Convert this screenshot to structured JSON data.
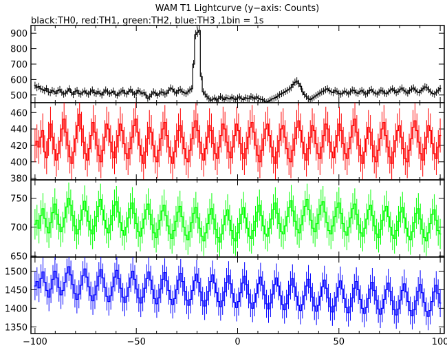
{
  "chart_data": {
    "type": "line",
    "title": "WAM T1 Lightcurve (y−axis: Counts)",
    "subtitle": "black:TH0, red:TH1, green:TH2, blue:TH3 ,1bin = 1s",
    "x_range": [
      -102,
      102
    ],
    "x_ticks": [
      -100,
      -50,
      0,
      50,
      100
    ],
    "x_tick_labels": [
      "−100",
      "−50",
      "0",
      "50",
      "100"
    ],
    "grid": false,
    "panels": [
      {
        "series_name": "TH0",
        "color": "#000000",
        "ylim": [
          450,
          950
        ],
        "yticks": [
          500,
          600,
          700,
          800,
          900
        ],
        "values": [
          562,
          548,
          555,
          540,
          535,
          528,
          541,
          520,
          515,
          530,
          522,
          510,
          528,
          535,
          518,
          505,
          512,
          525,
          540,
          515,
          503,
          522,
          530,
          510,
          505,
          518,
          526,
          512,
          505,
          520,
          532,
          515,
          508,
          522,
          510,
          500,
          518,
          532,
          520,
          508,
          515,
          525,
          505,
          498,
          512,
          520,
          530,
          512,
          506,
          522,
          535,
          518,
          504,
          512,
          528,
          520,
          508,
          515,
          500,
          478,
          488,
          505,
          520,
          512,
          498,
          508,
          520,
          516,
          505,
          512,
          530,
          545,
          538,
          520,
          512,
          528,
          535,
          522,
          515,
          508,
          520,
          532,
          540,
          700,
          890,
          905,
          918,
          620,
          520,
          505,
          488,
          476,
          465,
          472,
          480,
          468,
          475,
          490,
          480,
          470,
          482,
          478,
          474,
          485,
          476,
          470,
          480,
          488,
          476,
          470,
          482,
          478,
          476,
          490,
          482,
          474,
          488,
          478,
          472,
          470,
          460,
          452,
          458,
          466,
          474,
          478,
          484,
          492,
          502,
          508,
          515,
          522,
          530,
          538,
          548,
          568,
          582,
          590,
          574,
          556,
          520,
          502,
          490,
          476,
          470,
          478,
          486,
          495,
          504,
          512,
          520,
          525,
          534,
          540,
          528,
          520,
          515,
          530,
          522,
          510,
          505,
          512,
          525,
          518,
          506,
          520,
          532,
          528,
          515,
          510,
          522,
          530,
          518,
          505,
          512,
          528,
          535,
          520,
          512,
          505,
          518,
          530,
          525,
          512,
          508,
          520,
          532,
          540,
          528,
          515,
          522,
          535,
          545,
          530,
          520,
          512,
          528,
          538,
          545,
          532,
          520,
          515,
          528,
          540,
          552,
          548,
          535,
          520,
          510,
          505,
          518,
          530,
          542
        ]
      },
      {
        "series_name": "TH1",
        "color": "#ff0000",
        "ylim": [
          378,
          472
        ],
        "yticks": [
          380,
          400,
          420,
          440,
          460
        ],
        "values": [
          420,
          425,
          418,
          430,
          438,
          412,
          405,
          428,
          446,
          430,
          415,
          402,
          410,
          425,
          440,
          452,
          436,
          420,
          406,
          398,
          412,
          428,
          444,
          458,
          440,
          424,
          410,
          402,
          416,
          432,
          448,
          436,
          420,
          408,
          400,
          414,
          430,
          446,
          440,
          424,
          412,
          405,
          418,
          432,
          446,
          438,
          422,
          410,
          404,
          416,
          430,
          444,
          452,
          436,
          420,
          408,
          398,
          412,
          428,
          442,
          436,
          420,
          406,
          400,
          414,
          428,
          440,
          448,
          432,
          418,
          406,
          398,
          412,
          426,
          438,
          444,
          430,
          416,
          404,
          400,
          414,
          428,
          442,
          450,
          438,
          424,
          410,
          402,
          416,
          430,
          444,
          438,
          422,
          410,
          404,
          418,
          432,
          446,
          440,
          424,
          412,
          405,
          418,
          432,
          446,
          438,
          422,
          410,
          404,
          416,
          430,
          442,
          448,
          436,
          420,
          408,
          400,
          414,
          428,
          440,
          446,
          432,
          418,
          406,
          398,
          412,
          426,
          440,
          444,
          430,
          416,
          404,
          400,
          414,
          428,
          442,
          450,
          438,
          424,
          410,
          402,
          416,
          430,
          444,
          438,
          422,
          410,
          404,
          418,
          432,
          446,
          440,
          424,
          412,
          405,
          418,
          432,
          446,
          438,
          422,
          410,
          404,
          416,
          430,
          444,
          452,
          436,
          420,
          408,
          398,
          412,
          428,
          442,
          436,
          420,
          406,
          400,
          414,
          428,
          440,
          448,
          432,
          418,
          406,
          398,
          412,
          426,
          438,
          444,
          430,
          416,
          404,
          400,
          414,
          428,
          442,
          450,
          438,
          424,
          410,
          402,
          416,
          430,
          444,
          438,
          422,
          410,
          404,
          418,
          432
        ]
      },
      {
        "series_name": "TH2",
        "color": "#00ff00",
        "ylim": [
          648,
          782
        ],
        "yticks": [
          650,
          700,
          750
        ],
        "values": [
          705,
          712,
          698,
          720,
          732,
          715,
          700,
          690,
          708,
          725,
          740,
          722,
          705,
          692,
          700,
          716,
          735,
          750,
          738,
          720,
          702,
          688,
          696,
          712,
          730,
          745,
          728,
          710,
          695,
          688,
          702,
          718,
          736,
          748,
          730,
          712,
          698,
          690,
          704,
          720,
          738,
          744,
          726,
          708,
          694,
          686,
          700,
          716,
          732,
          742,
          724,
          706,
          692,
          684,
          698,
          714,
          730,
          740,
          722,
          704,
          690,
          682,
          696,
          712,
          728,
          738,
          720,
          702,
          688,
          680,
          694,
          710,
          726,
          736,
          718,
          700,
          686,
          678,
          692,
          708,
          724,
          734,
          716,
          698,
          684,
          676,
          690,
          706,
          722,
          732,
          714,
          696,
          682,
          674,
          688,
          704,
          720,
          730,
          712,
          694,
          680,
          676,
          690,
          706,
          722,
          734,
          716,
          698,
          684,
          680,
          694,
          710,
          726,
          738,
          720,
          702,
          688,
          684,
          698,
          714,
          730,
          742,
          724,
          706,
          692,
          688,
          702,
          718,
          734,
          746,
          728,
          710,
          696,
          690,
          704,
          720,
          736,
          748,
          730,
          712,
          698,
          692,
          706,
          722,
          738,
          744,
          726,
          708,
          694,
          688,
          702,
          718,
          734,
          742,
          724,
          706,
          692,
          686,
          700,
          716,
          732,
          740,
          722,
          704,
          690,
          684,
          698,
          714,
          730,
          738,
          720,
          702,
          688,
          682,
          696,
          712,
          728,
          736,
          718,
          700,
          686,
          680,
          694,
          710,
          726,
          734,
          716,
          698,
          684,
          678,
          692,
          708,
          724,
          732,
          714,
          696,
          682,
          676,
          690,
          706,
          722,
          730,
          712,
          694,
          688
        ]
      },
      {
        "series_name": "TH3",
        "color": "#0000ff",
        "ylim": [
          1332,
          1538
        ],
        "yticks": [
          1350,
          1400,
          1450,
          1500
        ],
        "values": [
          1460,
          1472,
          1455,
          1480,
          1498,
          1470,
          1448,
          1430,
          1452,
          1478,
          1500,
          1482,
          1456,
          1436,
          1448,
          1470,
          1495,
          1512,
          1490,
          1464,
          1440,
          1424,
          1438,
          1462,
          1488,
          1506,
          1484,
          1458,
          1434,
          1420,
          1436,
          1460,
          1486,
          1504,
          1482,
          1456,
          1432,
          1418,
          1434,
          1458,
          1484,
          1502,
          1480,
          1454,
          1430,
          1416,
          1432,
          1456,
          1482,
          1500,
          1478,
          1452,
          1428,
          1414,
          1430,
          1454,
          1480,
          1498,
          1476,
          1450,
          1426,
          1412,
          1428,
          1452,
          1478,
          1496,
          1474,
          1448,
          1424,
          1410,
          1426,
          1450,
          1476,
          1494,
          1472,
          1446,
          1422,
          1408,
          1424,
          1448,
          1474,
          1492,
          1470,
          1444,
          1420,
          1406,
          1422,
          1446,
          1472,
          1490,
          1468,
          1442,
          1418,
          1404,
          1420,
          1444,
          1470,
          1488,
          1466,
          1440,
          1416,
          1402,
          1418,
          1442,
          1468,
          1486,
          1464,
          1438,
          1414,
          1400,
          1416,
          1440,
          1466,
          1484,
          1462,
          1436,
          1412,
          1398,
          1414,
          1438,
          1464,
          1482,
          1460,
          1434,
          1410,
          1396,
          1412,
          1436,
          1462,
          1480,
          1458,
          1432,
          1408,
          1394,
          1410,
          1434,
          1460,
          1478,
          1456,
          1430,
          1406,
          1392,
          1408,
          1432,
          1458,
          1476,
          1454,
          1428,
          1404,
          1390,
          1406,
          1430,
          1456,
          1474,
          1452,
          1426,
          1402,
          1388,
          1404,
          1428,
          1454,
          1472,
          1450,
          1424,
          1400,
          1386,
          1402,
          1426,
          1452,
          1470,
          1448,
          1422,
          1398,
          1384,
          1400,
          1424,
          1450,
          1468,
          1446,
          1420,
          1396,
          1382,
          1398,
          1422,
          1448,
          1466,
          1444,
          1418,
          1394,
          1380,
          1396,
          1420,
          1446,
          1464,
          1442,
          1416,
          1392,
          1378,
          1394,
          1418,
          1444,
          1462,
          1440,
          1414
        ]
      }
    ]
  }
}
